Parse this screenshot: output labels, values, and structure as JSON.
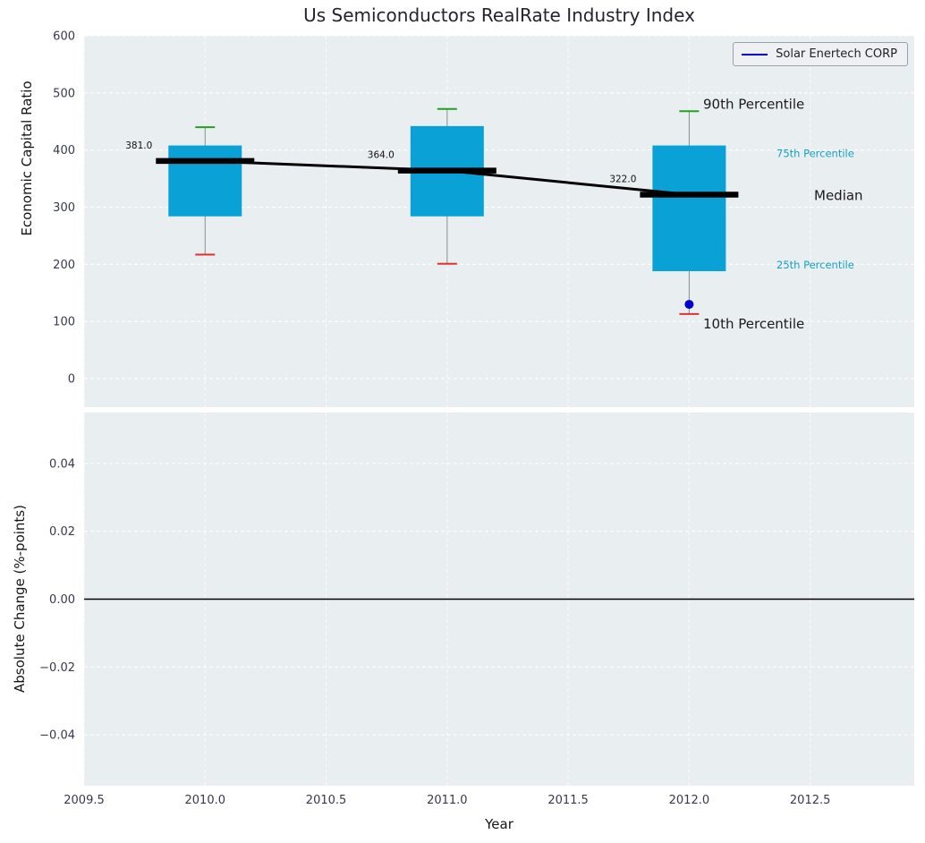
{
  "chart_data": [
    {
      "type": "boxplot",
      "title": "Us Semiconductors RealRate Industry Index",
      "ylabel": "Economic Capital Ratio",
      "ylim": [
        -50,
        600
      ],
      "xlim": [
        2009.5,
        2012.93
      ],
      "grid": true,
      "legend_position": "upper right",
      "ytick_values": [
        0,
        100,
        200,
        300,
        400,
        500,
        600
      ],
      "ytick_labels": [
        "0",
        "100",
        "200",
        "300",
        "400",
        "500",
        "600"
      ],
      "boxes": [
        {
          "x": 2010,
          "median": 381.0,
          "q1": 284,
          "q3": 408,
          "p10": 217,
          "p90": 440
        },
        {
          "x": 2011,
          "median": 364.0,
          "q1": 284,
          "q3": 442,
          "p10": 201,
          "p90": 472
        },
        {
          "x": 2012,
          "median": 322.0,
          "q1": 188,
          "q3": 408,
          "p10": 113,
          "p90": 468
        }
      ],
      "median_labels": [
        "381.0",
        "364.0",
        "322.0"
      ],
      "company_series": {
        "name": "Solar Enertech CORP",
        "points": [
          {
            "x": 2012,
            "y": 130
          }
        ],
        "color": "#0000cc"
      },
      "annotations": [
        {
          "key": "p90",
          "label": "90th Percentile",
          "color": "#1a1a1a",
          "size": "large"
        },
        {
          "key": "q3",
          "label": "75th Percentile",
          "color": "#15a2c4",
          "size": "small"
        },
        {
          "key": "median",
          "label": "Median",
          "color": "#1a1a1a",
          "size": "large"
        },
        {
          "key": "q1",
          "label": "25th Percentile",
          "color": "#15a2c4",
          "size": "small"
        },
        {
          "key": "p10",
          "label": "10th Percentile",
          "color": "#1a1a1a",
          "size": "large"
        }
      ],
      "colors": {
        "box": "#09a1d6",
        "whisker": "#8a8a8a",
        "cap_top": "#22a022",
        "cap_bottom": "#e03131",
        "median": "#000000",
        "trend": "#000000",
        "background": "#e9eef0",
        "gridline": "#ffffff",
        "tick_label": "#38384e"
      }
    },
    {
      "type": "line",
      "ylabel": "Absolute Change (%-points)",
      "xlabel": "Year",
      "ylim": [
        -0.055,
        0.055
      ],
      "ytick_values": [
        -0.04,
        -0.02,
        0,
        0.02,
        0.04
      ],
      "ytick_labels": [
        "−0.04",
        "−0.02",
        "0.00",
        "0.02",
        "0.04"
      ],
      "xtick_values": [
        2009.5,
        2010.0,
        2010.5,
        2011.0,
        2011.5,
        2012.0,
        2012.5
      ],
      "xtick_labels": [
        "2009.5",
        "2010.0",
        "2010.5",
        "2011.0",
        "2011.5",
        "2012.0",
        "2012.5"
      ],
      "zero_line": true,
      "series": []
    }
  ]
}
